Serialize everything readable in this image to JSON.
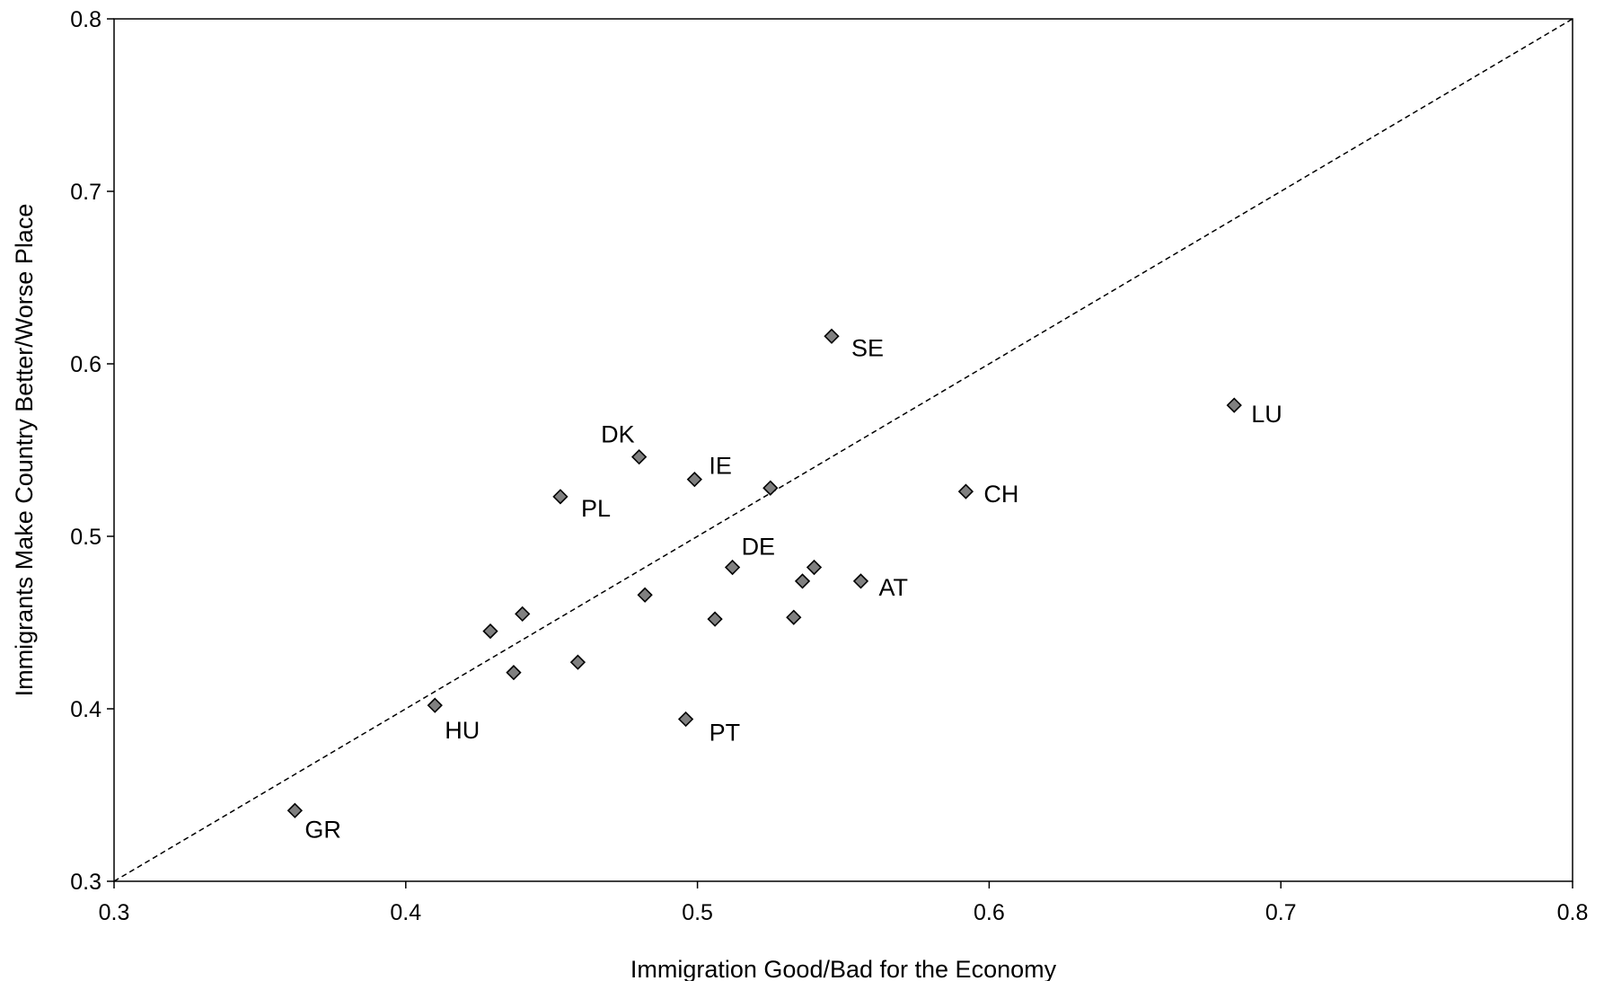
{
  "chart_data": {
    "type": "scatter",
    "title": "",
    "xlabel": "Immigration Good/Bad for the Economy",
    "ylabel": "Immigrants Make Country Better/Worse Place",
    "xlim": [
      0.3,
      0.8
    ],
    "ylim": [
      0.3,
      0.8
    ],
    "xticks": [
      "0.3",
      "0.4",
      "0.5",
      "0.6",
      "0.7",
      "0.8"
    ],
    "yticks": [
      "0.3",
      "0.4",
      "0.5",
      "0.6",
      "0.7",
      "0.8"
    ],
    "grid": false,
    "legend": "none",
    "marker": "diamond",
    "marker_color": "#808080",
    "reference_line": {
      "style": "dashed",
      "x": [
        0.3,
        0.8
      ],
      "y": [
        0.3,
        0.8
      ]
    },
    "points": [
      {
        "x": 0.362,
        "y": 0.341,
        "label": "GR"
      },
      {
        "x": 0.41,
        "y": 0.402,
        "label": "HU"
      },
      {
        "x": 0.429,
        "y": 0.445,
        "label": ""
      },
      {
        "x": 0.437,
        "y": 0.421,
        "label": ""
      },
      {
        "x": 0.44,
        "y": 0.455,
        "label": ""
      },
      {
        "x": 0.453,
        "y": 0.523,
        "label": "PL"
      },
      {
        "x": 0.459,
        "y": 0.427,
        "label": ""
      },
      {
        "x": 0.48,
        "y": 0.546,
        "label": "DK"
      },
      {
        "x": 0.482,
        "y": 0.466,
        "label": ""
      },
      {
        "x": 0.496,
        "y": 0.394,
        "label": "PT"
      },
      {
        "x": 0.499,
        "y": 0.533,
        "label": "IE"
      },
      {
        "x": 0.506,
        "y": 0.452,
        "label": ""
      },
      {
        "x": 0.512,
        "y": 0.482,
        "label": "DE"
      },
      {
        "x": 0.525,
        "y": 0.528,
        "label": ""
      },
      {
        "x": 0.533,
        "y": 0.453,
        "label": ""
      },
      {
        "x": 0.536,
        "y": 0.474,
        "label": ""
      },
      {
        "x": 0.54,
        "y": 0.482,
        "label": ""
      },
      {
        "x": 0.546,
        "y": 0.616,
        "label": "SE"
      },
      {
        "x": 0.556,
        "y": 0.474,
        "label": "AT"
      },
      {
        "x": 0.592,
        "y": 0.526,
        "label": "CH"
      },
      {
        "x": 0.684,
        "y": 0.576,
        "label": "LU"
      }
    ]
  }
}
